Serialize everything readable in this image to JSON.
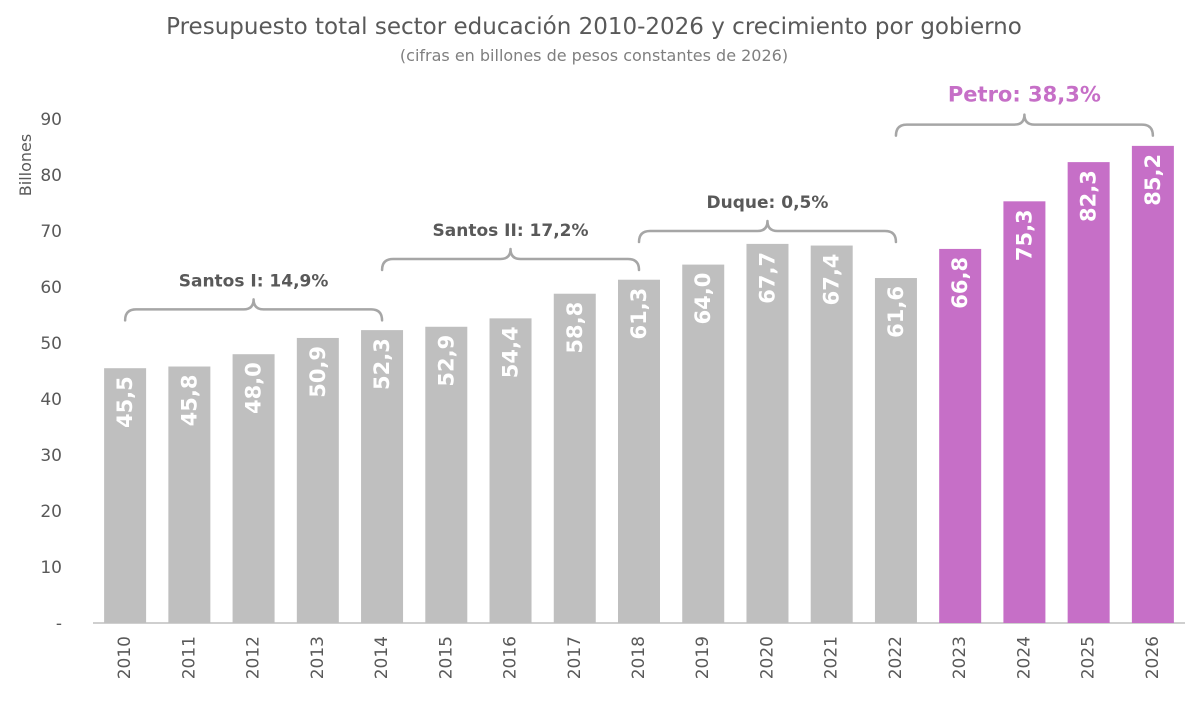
{
  "chart_data": {
    "type": "bar",
    "title": "Presupuesto total sector educación 2010-2026 y crecimiento por gobierno",
    "subtitle": "(cifras en billones de pesos constantes de 2026)",
    "ylabel": "Billones",
    "xlabel": "",
    "ylim": [
      0,
      90
    ],
    "yticks": [
      0,
      10,
      20,
      30,
      40,
      50,
      60,
      70,
      80,
      90
    ],
    "ytick_labels": [
      "-",
      "10",
      "20",
      "30",
      "40",
      "50",
      "60",
      "70",
      "80",
      "90"
    ],
    "grid": false,
    "categories": [
      "2010",
      "2011",
      "2012",
      "2013",
      "2014",
      "2015",
      "2016",
      "2017",
      "2018",
      "2019",
      "2020",
      "2021",
      "2022",
      "2023",
      "2024",
      "2025",
      "2026"
    ],
    "values": [
      45.5,
      45.8,
      48.0,
      50.9,
      52.3,
      52.9,
      54.4,
      58.8,
      61.3,
      64.0,
      67.7,
      67.4,
      61.6,
      66.8,
      75.3,
      82.3,
      85.2
    ],
    "value_labels": [
      "45,5",
      "45,8",
      "48,0",
      "50,9",
      "52,3",
      "52,9",
      "54,4",
      "58,8",
      "61,3",
      "64,0",
      "67,7",
      "67,4",
      "61,6",
      "66,8",
      "75,3",
      "82,3",
      "85,2"
    ],
    "bar_colors": [
      "#bfbfbf",
      "#bfbfbf",
      "#bfbfbf",
      "#bfbfbf",
      "#bfbfbf",
      "#bfbfbf",
      "#bfbfbf",
      "#bfbfbf",
      "#bfbfbf",
      "#bfbfbf",
      "#bfbfbf",
      "#bfbfbf",
      "#bfbfbf",
      "#c66fc7",
      "#c66fc7",
      "#c66fc7",
      "#c66fc7"
    ],
    "annotations": [
      {
        "label": "Santos I: 14,9%",
        "from": "2010",
        "to": "2014",
        "color": "#595959",
        "level": 56
      },
      {
        "label": "Santos II: 17,2%",
        "from": "2014",
        "to": "2018",
        "color": "#595959",
        "level": 65
      },
      {
        "label": "Duque: 0,5%",
        "from": "2018",
        "to": "2022",
        "color": "#595959",
        "level": 70
      },
      {
        "label": "Petro: 38,3%",
        "from": "2022",
        "to": "2026",
        "color": "#c66fc7",
        "level": 89
      }
    ]
  },
  "colors": {
    "gray_bar": "#bfbfbf",
    "petro_bar": "#c66fc7",
    "bracket": "#a6a6a6",
    "text": "#595959"
  }
}
